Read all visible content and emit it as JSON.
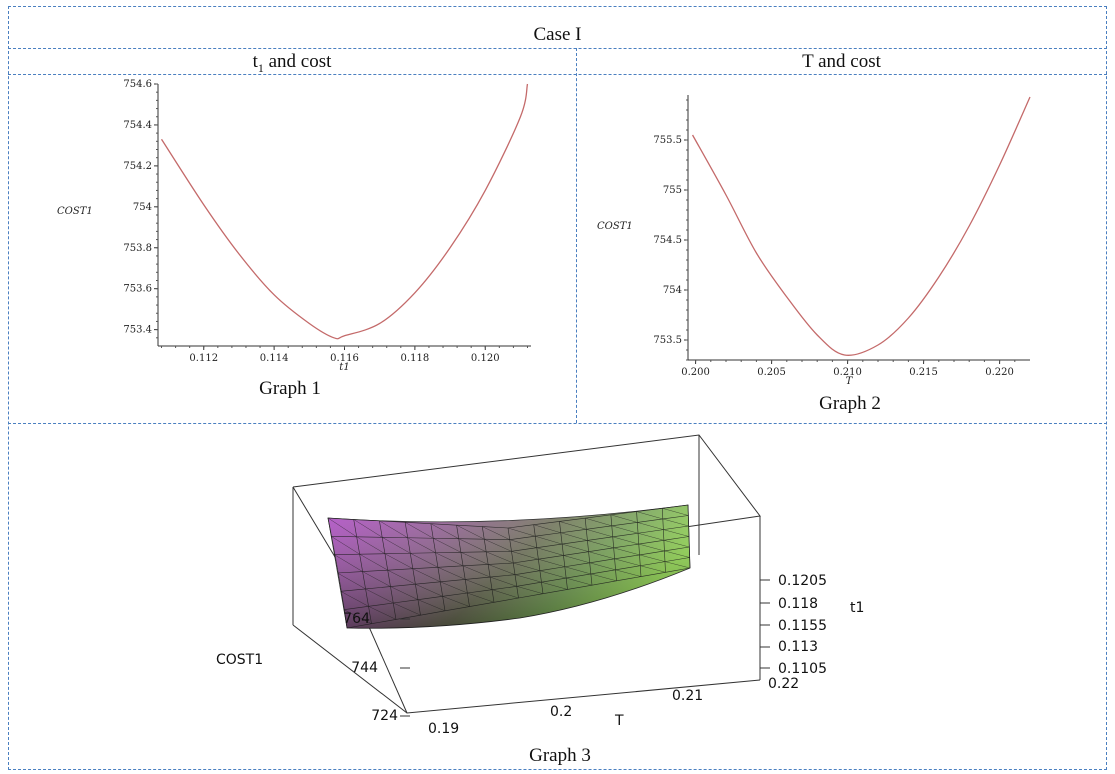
{
  "table": {
    "header": "Case I",
    "col1_title_main": "t",
    "col1_title_sub": "1",
    "col1_title_rest": " and cost",
    "col2_title": "T and cost"
  },
  "captions": {
    "graph1": "Graph 1",
    "graph2": "Graph 2",
    "graph3": "Graph 3"
  },
  "colors": {
    "curve": "#c46a6a",
    "grid_border": "#4a7fc0"
  },
  "chart_data": [
    {
      "type": "line",
      "xlabel": "t1",
      "ylabel": "COST1",
      "xlim": [
        0.1107,
        0.1213
      ],
      "ylim": [
        753.32,
        754.6
      ],
      "x_ticks": [
        "0.112",
        "0.114",
        "0.116",
        "0.118",
        "0.120"
      ],
      "y_ticks": [
        "753.4",
        "753.6",
        "753.8",
        "754",
        "754.2",
        "754.4",
        "754.6"
      ],
      "series": [
        {
          "x": [
            0.1108,
            0.112,
            0.113,
            0.114,
            0.115,
            0.1157,
            0.116,
            0.117,
            0.118,
            0.119,
            0.12,
            0.121,
            0.1212
          ],
          "y": [
            754.33,
            754.01,
            753.77,
            753.57,
            753.43,
            753.36,
            753.37,
            753.43,
            753.58,
            753.8,
            754.08,
            754.44,
            754.6
          ]
        }
      ]
    },
    {
      "type": "line",
      "xlabel": "T",
      "ylabel": "COST1",
      "xlim": [
        0.1995,
        0.222
      ],
      "ylim": [
        753.3,
        755.95
      ],
      "x_ticks": [
        "0.200",
        "0.205",
        "0.210",
        "0.215",
        "0.220"
      ],
      "y_ticks": [
        "753.5",
        "754",
        "754.5",
        "755",
        "755.5"
      ],
      "series": [
        {
          "x": [
            0.1998,
            0.202,
            0.204,
            0.206,
            0.208,
            0.2098,
            0.212,
            0.214,
            0.216,
            0.218,
            0.22,
            0.222
          ],
          "y": [
            755.55,
            754.95,
            754.37,
            753.93,
            753.55,
            753.35,
            753.45,
            753.72,
            754.13,
            754.64,
            755.25,
            755.93
          ]
        }
      ]
    },
    {
      "type": "surface",
      "xlabel": "T",
      "ylabel": "t1",
      "zlabel": "COST1",
      "x_ticks": [
        "0.19",
        "0.2",
        "0.21",
        "0.22"
      ],
      "y_ticks": [
        "0.1105",
        "0.113",
        "0.1155",
        "0.118",
        "0.1205"
      ],
      "z_ticks": [
        "724",
        "744",
        "764"
      ]
    }
  ]
}
